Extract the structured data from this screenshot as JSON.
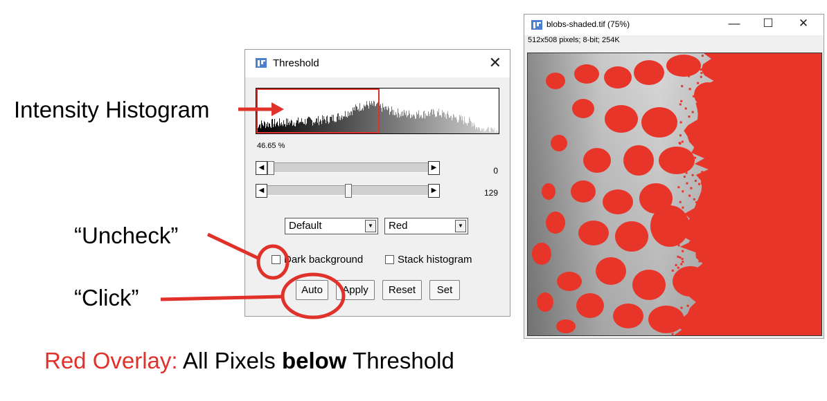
{
  "annotations": {
    "histogram_label": "Intensity Histogram",
    "uncheck_label": "“Uncheck”",
    "click_label": "“Click”",
    "caption_red": "Red Overlay:",
    "caption_pre": " All Pixels ",
    "caption_bold": "below",
    "caption_post": " Threshold",
    "arrow_color": "#e0322a"
  },
  "threshold_dialog": {
    "title": "Threshold",
    "app_icon": "imagej-icon",
    "histogram_percent": "46.65 %",
    "min_slider_value": "0",
    "max_slider_value": "129",
    "min_slider_fraction": 0.0,
    "max_slider_fraction": 0.506,
    "method_select": "Default",
    "display_select": "Red",
    "dark_background_label": "Dark background",
    "dark_background_checked": false,
    "stack_histogram_label": "Stack histogram",
    "stack_histogram_checked": false,
    "buttons": {
      "auto": "Auto",
      "apply": "Apply",
      "reset": "Reset",
      "set": "Set"
    }
  },
  "image_window": {
    "title": "blobs-shaded.tif (75%)",
    "info": "512x508 pixels; 8-bit; 254K",
    "controls": {
      "minimize": "—",
      "maximize": "☐",
      "close": "✕"
    },
    "overlay_color": "#e8352a"
  }
}
